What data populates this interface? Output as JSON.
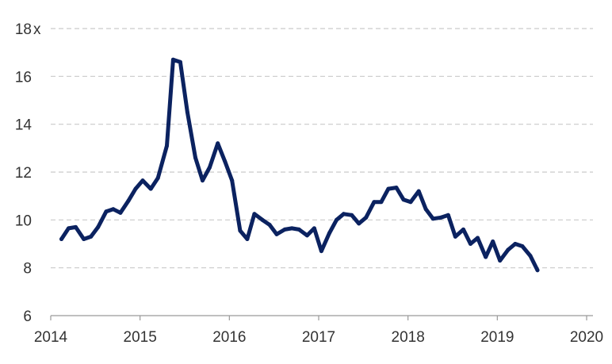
{
  "chart_data": {
    "type": "line",
    "title": "",
    "xlabel": "",
    "ylabel": "",
    "y_unit": "x",
    "xlim": [
      2014,
      2020
    ],
    "ylim": [
      6,
      18
    ],
    "x_ticks": [
      "2014",
      "2015",
      "2016",
      "2017",
      "2018",
      "2019",
      "2020"
    ],
    "y_ticks": [
      "6",
      "8",
      "10",
      "12",
      "14",
      "16",
      "18"
    ],
    "grid": "horizontal-dashed",
    "colors": {
      "line": "#0b2260",
      "grid": "#c9c9c9",
      "axis": "#9a9a9a"
    },
    "series": [
      {
        "x": [
          2014.12,
          2014.2,
          2014.28,
          2014.37,
          2014.45,
          2014.53,
          2014.62,
          2014.7,
          2014.78,
          2014.87,
          2014.95,
          2015.03,
          2015.12,
          2015.2,
          2015.3,
          2015.37,
          2015.45,
          2015.53,
          2015.62,
          2015.7,
          2015.78,
          2015.87,
          2015.95,
          2016.03,
          2016.12,
          2016.2,
          2016.28,
          2016.37,
          2016.45,
          2016.53,
          2016.62,
          2016.7,
          2016.78,
          2016.87,
          2016.95,
          2017.03,
          2017.12,
          2017.2,
          2017.28,
          2017.37,
          2017.45,
          2017.53,
          2017.62,
          2017.7,
          2017.78,
          2017.87,
          2017.95,
          2018.03,
          2018.12,
          2018.2,
          2018.28,
          2018.37,
          2018.45,
          2018.53,
          2018.62,
          2018.7,
          2018.78,
          2018.87,
          2018.95,
          2019.03,
          2019.12,
          2019.2,
          2019.28,
          2019.37,
          2019.45
        ],
        "values": [
          9.2,
          9.65,
          9.7,
          9.2,
          9.3,
          9.7,
          10.35,
          10.45,
          10.3,
          10.8,
          11.3,
          11.65,
          11.3,
          11.75,
          13.1,
          16.7,
          16.6,
          14.5,
          12.6,
          11.65,
          12.2,
          13.2,
          12.45,
          11.65,
          9.55,
          9.2,
          10.25,
          10.0,
          9.8,
          9.4,
          9.6,
          9.65,
          9.6,
          9.35,
          9.65,
          8.7,
          9.45,
          10.0,
          10.25,
          10.2,
          9.85,
          10.1,
          10.75,
          10.75,
          11.3,
          11.35,
          10.85,
          10.75,
          11.2,
          10.45,
          10.05,
          10.1,
          10.2,
          9.3,
          9.6,
          9.0,
          9.25,
          8.45,
          9.1,
          8.3,
          8.75,
          9.0,
          8.9,
          8.5,
          7.9
        ]
      }
    ]
  }
}
